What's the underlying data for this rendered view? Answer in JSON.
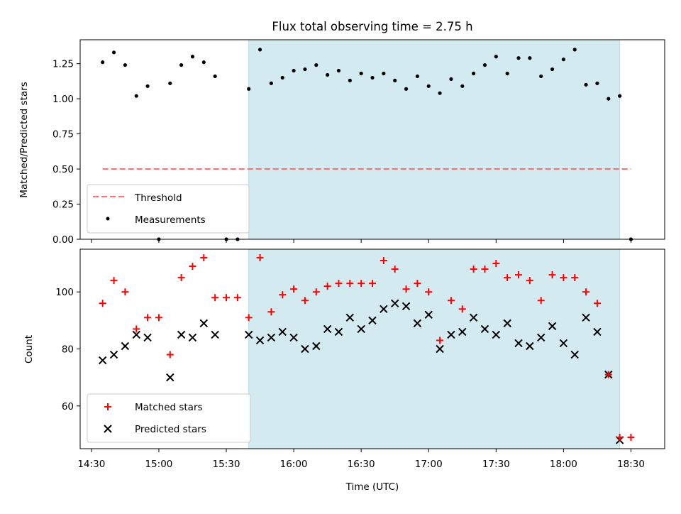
{
  "chart_data": [
    {
      "type": "scatter",
      "title": "Flux total observing time = 2.75 h",
      "ylabel": "Matched/Predicted stars",
      "xlabel": "",
      "ylim": [
        0,
        1.42
      ],
      "xlim": [
        "14:25",
        "18:45"
      ],
      "yticks": [
        "0.00",
        "0.25",
        "0.50",
        "0.75",
        "1.00",
        "1.25"
      ],
      "shaded_interval": [
        "15:40",
        "18:25"
      ],
      "shade_color": "#d3eaf0",
      "legend_position": "lower-left",
      "threshold": {
        "name": "Threshold",
        "y": 0.5,
        "x": [
          "14:35",
          "18:30"
        ],
        "color": "#ff7070"
      },
      "series": [
        {
          "name": "Measurements",
          "color": "#000000",
          "x": [
            "14:35",
            "14:40",
            "14:45",
            "14:50",
            "14:55",
            "15:00",
            "15:05",
            "15:10",
            "15:15",
            "15:20",
            "15:25",
            "15:30",
            "15:35",
            "15:40",
            "15:45",
            "15:50",
            "15:55",
            "16:00",
            "16:05",
            "16:10",
            "16:15",
            "16:20",
            "16:25",
            "16:30",
            "16:35",
            "16:40",
            "16:45",
            "16:50",
            "16:55",
            "17:00",
            "17:05",
            "17:10",
            "17:15",
            "17:20",
            "17:25",
            "17:30",
            "17:35",
            "17:40",
            "17:45",
            "17:50",
            "17:55",
            "18:00",
            "18:05",
            "18:10",
            "18:15",
            "18:20",
            "18:25",
            "18:30"
          ],
          "y": [
            1.26,
            1.33,
            1.24,
            1.02,
            1.09,
            0.0,
            1.11,
            1.24,
            1.3,
            1.26,
            1.16,
            0.0,
            0.0,
            1.07,
            1.35,
            1.11,
            1.15,
            1.2,
            1.21,
            1.24,
            1.17,
            1.2,
            1.13,
            1.18,
            1.15,
            1.18,
            1.13,
            1.07,
            1.16,
            1.09,
            1.04,
            1.14,
            1.09,
            1.18,
            1.24,
            1.3,
            1.18,
            1.29,
            1.29,
            1.16,
            1.21,
            1.28,
            1.35,
            1.1,
            1.11,
            1.0,
            1.02,
            0.0
          ]
        }
      ]
    },
    {
      "type": "scatter",
      "title": "",
      "ylabel": "Count",
      "xlabel": "Time (UTC)",
      "ylim": [
        45,
        115
      ],
      "xlim": [
        "14:25",
        "18:45"
      ],
      "yticks": [
        "60",
        "80",
        "100"
      ],
      "xticks": [
        "14:30",
        "15:00",
        "15:30",
        "16:00",
        "16:30",
        "17:00",
        "17:30",
        "18:00",
        "18:30"
      ],
      "shaded_interval": [
        "15:40",
        "18:25"
      ],
      "shade_color": "#d3eaf0",
      "legend_position": "lower-left",
      "series": [
        {
          "name": "Matched stars",
          "marker": "plus",
          "color": "#ff0000",
          "x": [
            "14:35",
            "14:40",
            "14:45",
            "14:50",
            "14:55",
            "15:00",
            "15:05",
            "15:10",
            "15:15",
            "15:20",
            "15:25",
            "15:30",
            "15:35",
            "15:40",
            "15:45",
            "15:50",
            "15:55",
            "16:00",
            "16:05",
            "16:10",
            "16:15",
            "16:20",
            "16:25",
            "16:30",
            "16:35",
            "16:40",
            "16:45",
            "16:50",
            "16:55",
            "17:00",
            "17:05",
            "17:10",
            "17:15",
            "17:20",
            "17:25",
            "17:30",
            "17:35",
            "17:40",
            "17:45",
            "17:50",
            "17:55",
            "18:00",
            "18:05",
            "18:10",
            "18:15",
            "18:20",
            "18:25",
            "18:30"
          ],
          "y": [
            96,
            104,
            100,
            87,
            91,
            91,
            78,
            105,
            109,
            112,
            98,
            98,
            98,
            91,
            112,
            93,
            99,
            101,
            97,
            100,
            102,
            103,
            103,
            103,
            103,
            111,
            108,
            101,
            103,
            100,
            83,
            97,
            94,
            108,
            108,
            110,
            105,
            106,
            104,
            97,
            106,
            105,
            105,
            100,
            96,
            71,
            49,
            49
          ]
        },
        {
          "name": "Predicted stars",
          "marker": "x",
          "color": "#000000",
          "x": [
            "14:35",
            "14:40",
            "14:45",
            "14:50",
            "14:55",
            "15:05",
            "15:10",
            "15:15",
            "15:20",
            "15:25",
            "15:40",
            "15:45",
            "15:50",
            "15:55",
            "16:00",
            "16:05",
            "16:10",
            "16:15",
            "16:20",
            "16:25",
            "16:30",
            "16:35",
            "16:40",
            "16:45",
            "16:50",
            "16:55",
            "17:00",
            "17:05",
            "17:10",
            "17:15",
            "17:20",
            "17:25",
            "17:30",
            "17:35",
            "17:40",
            "17:45",
            "17:50",
            "17:55",
            "18:00",
            "18:05",
            "18:10",
            "18:15",
            "18:20",
            "18:25"
          ],
          "y": [
            76,
            78,
            81,
            85,
            84,
            70,
            85,
            84,
            89,
            85,
            85,
            83,
            84,
            86,
            84,
            80,
            81,
            87,
            86,
            91,
            87,
            90,
            94,
            96,
            95,
            89,
            92,
            80,
            85,
            86,
            91,
            87,
            85,
            89,
            82,
            81,
            84,
            88,
            82,
            78,
            91,
            86,
            71,
            48
          ]
        }
      ]
    }
  ]
}
